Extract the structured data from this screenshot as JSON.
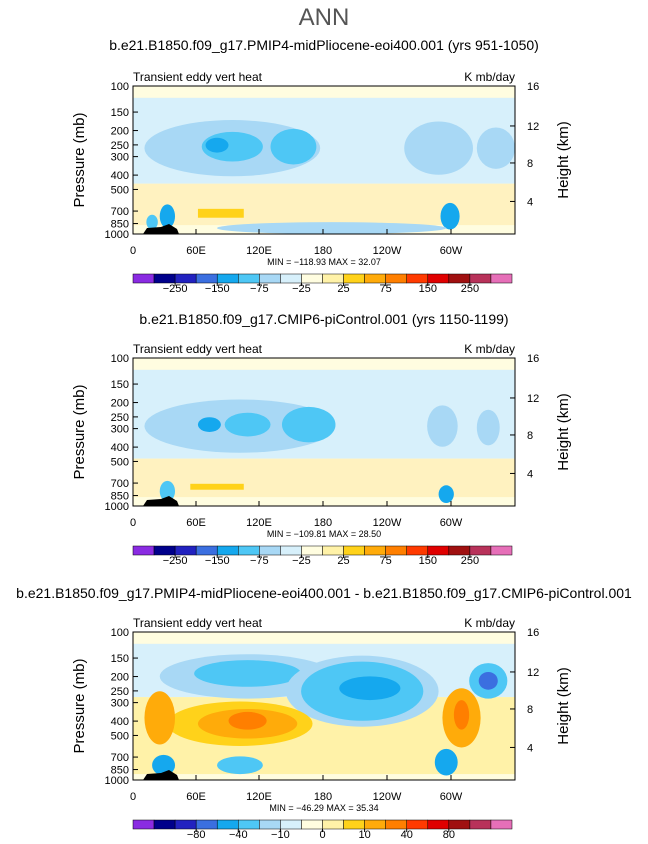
{
  "page_title": "ANN",
  "colorbar_colors": [
    "#8a2be2",
    "#00008b",
    "#2222c0",
    "#3b6fe0",
    "#15a8ee",
    "#4ec7f5",
    "#a8d8f5",
    "#d7f0fb",
    "#fffde0",
    "#fff2a8",
    "#ffd21a",
    "#ffab0a",
    "#ff7f00",
    "#ff3a00",
    "#e00000",
    "#a01010",
    "#b8325a",
    "#e66fb8"
  ],
  "chart_data": [
    {
      "type": "heatmap",
      "name": "panel-top",
      "title": "b.e21.B1850.f09_g17.PMIP4-midPliocene-eoi400.001 (yrs 951-1050)",
      "left_label": "Transient eddy vert heat",
      "right_label": "K mb/day",
      "ylabel": "Pressure (mb)",
      "ylabel_right": "Height (km)",
      "xticks": [
        "0",
        "60E",
        "120E",
        "180",
        "120W",
        "60W"
      ],
      "yticks": [
        "100",
        "150",
        "200",
        "250",
        "300",
        "400",
        "500",
        "700",
        "850",
        "1000"
      ],
      "yticks_right": [
        "16",
        "12",
        "8",
        "4"
      ],
      "stats": "MIN = −118.93   MAX =  32.07",
      "colorbar_labels": [
        "−250",
        "−150",
        "−75",
        "−25",
        "25",
        "75",
        "150",
        "250"
      ]
    },
    {
      "type": "heatmap",
      "name": "panel-middle",
      "title": "b.e21.B1850.f09_g17.CMIP6-piControl.001 (yrs 1150-1199)",
      "left_label": "Transient eddy vert heat",
      "right_label": "K mb/day",
      "ylabel": "Pressure (mb)",
      "ylabel_right": "Height (km)",
      "xticks": [
        "0",
        "60E",
        "120E",
        "180",
        "120W",
        "60W"
      ],
      "yticks": [
        "100",
        "150",
        "200",
        "250",
        "300",
        "400",
        "500",
        "700",
        "850",
        "1000"
      ],
      "yticks_right": [
        "16",
        "12",
        "8",
        "4"
      ],
      "stats": "MIN = −109.81   MAX =  28.50",
      "colorbar_labels": [
        "−250",
        "−150",
        "−75",
        "−25",
        "25",
        "75",
        "150",
        "250"
      ]
    },
    {
      "type": "heatmap",
      "name": "panel-bottom",
      "title": "b.e21.B1850.f09_g17.PMIP4-midPliocene-eoi400.001 - b.e21.B1850.f09_g17.CMIP6-piControl.001",
      "left_label": "Transient eddy vert heat",
      "right_label": "K mb/day",
      "ylabel": "Pressure (mb)",
      "ylabel_right": "Height (km)",
      "xticks": [
        "0",
        "60E",
        "120E",
        "180",
        "120W",
        "60W"
      ],
      "yticks": [
        "100",
        "150",
        "200",
        "250",
        "300",
        "400",
        "500",
        "700",
        "850",
        "1000"
      ],
      "yticks_right": [
        "16",
        "12",
        "8",
        "4"
      ],
      "stats": "MIN = −46.29   MAX =  35.34",
      "colorbar_labels": [
        "−80",
        "−40",
        "−10",
        "0",
        "10",
        "40",
        "80"
      ]
    }
  ]
}
